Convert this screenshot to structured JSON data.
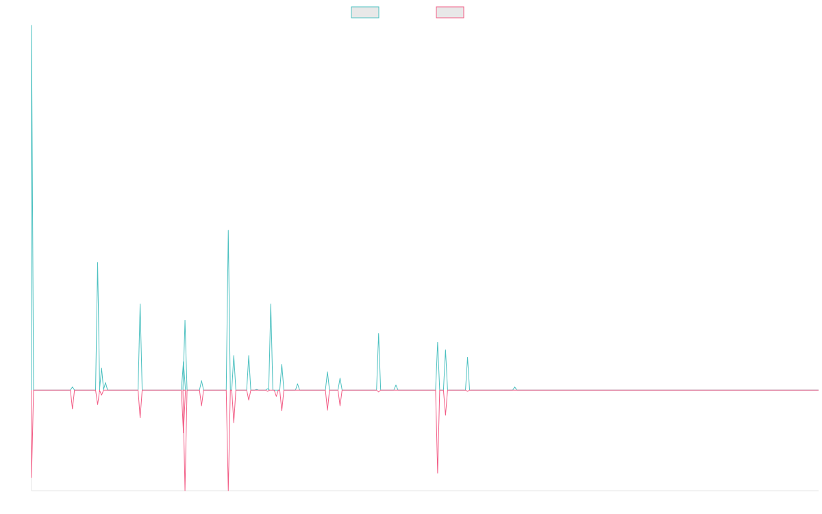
{
  "chart_data": {
    "type": "line",
    "title": "",
    "xlabel": "",
    "ylabel": "",
    "x_range": [
      0,
      1000
    ],
    "y_range": [
      -160,
      580
    ],
    "legend_placement": "top-center",
    "grid": false,
    "series": [
      {
        "color": "#4bc0c0",
        "fill": "#e8e8e8",
        "direction": "up",
        "points": [
          [
            0,
            580
          ],
          [
            52,
            5
          ],
          [
            84,
            203
          ],
          [
            89,
            35
          ],
          [
            94,
            12
          ],
          [
            138,
            137
          ],
          [
            193,
            45
          ],
          [
            195,
            111
          ],
          [
            216,
            15
          ],
          [
            250,
            254
          ],
          [
            257,
            55
          ],
          [
            276,
            55
          ],
          [
            286,
            1
          ],
          [
            300,
            2
          ],
          [
            304,
            137
          ],
          [
            318,
            41
          ],
          [
            338,
            10
          ],
          [
            376,
            29
          ],
          [
            392,
            19
          ],
          [
            441,
            90
          ],
          [
            463,
            8
          ],
          [
            516,
            76
          ],
          [
            526,
            64
          ],
          [
            554,
            52
          ],
          [
            614,
            5
          ]
        ]
      },
      {
        "color": "#f25c85",
        "fill": "#e8e8e8",
        "direction": "down",
        "points": [
          [
            0,
            139
          ],
          [
            52,
            30
          ],
          [
            84,
            23
          ],
          [
            89,
            8
          ],
          [
            138,
            44
          ],
          [
            193,
            68
          ],
          [
            195,
            160
          ],
          [
            216,
            25
          ],
          [
            250,
            160
          ],
          [
            257,
            52
          ],
          [
            276,
            16
          ],
          [
            300,
            2
          ],
          [
            311,
            10
          ],
          [
            318,
            33
          ],
          [
            376,
            32
          ],
          [
            392,
            25
          ],
          [
            441,
            3
          ],
          [
            516,
            132
          ],
          [
            526,
            40
          ],
          [
            554,
            2
          ]
        ]
      }
    ]
  }
}
